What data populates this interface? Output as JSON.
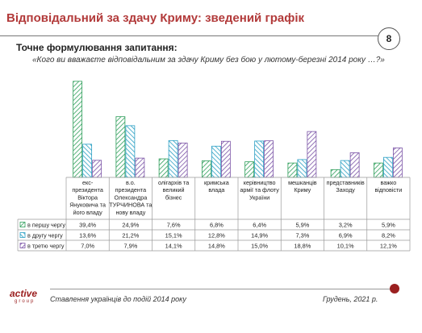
{
  "header": {
    "title": "Відповідальний за здачу Криму: зведений графік",
    "page_number": "8"
  },
  "subtitle": "Точне формулювання запитання:",
  "question": "«Кого ви вважаєте відповідальним за здачу Криму без бою у лютому-березні 2014 року …?»",
  "footer": {
    "left": "Ставлення українців до подій 2014 року",
    "right": "Грудень, 2021 р.",
    "logo_main": "active",
    "logo_sub": "group"
  },
  "colors": {
    "series1": "#2e9e5a",
    "series2": "#2a9fc4",
    "series3": "#7a53a6",
    "accent": "#b23a3a"
  },
  "chart_data": {
    "type": "bar",
    "categories": [
      [
        "екс-",
        "президента",
        "Віктора",
        "Януковича та",
        "його владу"
      ],
      [
        "в.о.",
        "президента",
        "Олександра",
        "ТУРЧИНОВА та",
        "нову владу"
      ],
      [
        "олігархів та",
        "великий",
        "бізнес"
      ],
      [
        "кримська",
        "влада"
      ],
      [
        "керівництво",
        "армії та флоту",
        "України"
      ],
      [
        "мешканців",
        "Криму"
      ],
      [
        "представників",
        "Заходу"
      ],
      [
        "важко",
        "відповісти"
      ]
    ],
    "series": [
      {
        "name": "в першу чергу",
        "values": [
          39.4,
          24.9,
          7.6,
          6.8,
          6.4,
          5.9,
          3.2,
          5.9
        ],
        "labels": [
          "39,4%",
          "24,9%",
          "7,6%",
          "6,8%",
          "6,4%",
          "5,9%",
          "3,2%",
          "5,9%"
        ]
      },
      {
        "name": "в другу чергу",
        "values": [
          13.6,
          21.2,
          15.1,
          12.8,
          14.9,
          7.3,
          6.9,
          8.2
        ],
        "labels": [
          "13,6%",
          "21,2%",
          "15,1%",
          "12,8%",
          "14,9%",
          "7,3%",
          "6,9%",
          "8,2%"
        ]
      },
      {
        "name": "в третю чергу",
        "values": [
          7.0,
          7.9,
          14.1,
          14.8,
          15.0,
          18.8,
          10.1,
          12.1
        ],
        "labels": [
          "7,0%",
          "7,9%",
          "14,1%",
          "14,8%",
          "15,0%",
          "18,8%",
          "10,1%",
          "12,1%"
        ]
      }
    ],
    "ylim": [
      0,
      40
    ],
    "grid": false,
    "legend": "table-below"
  }
}
